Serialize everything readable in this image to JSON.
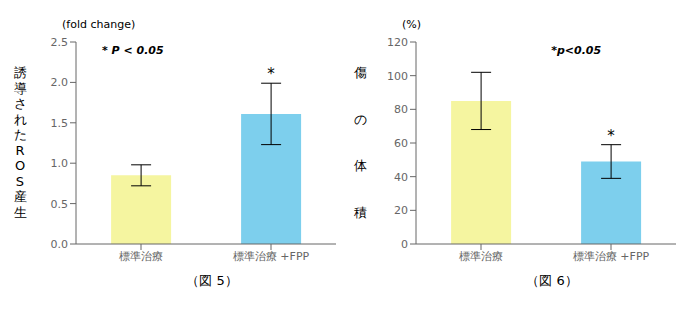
{
  "chart_data": [
    {
      "type": "bar",
      "caption": "（図 5）",
      "y_label": "誘導されたROS産生",
      "y_unit": "(fold change)",
      "annotation": "* P < 0.05",
      "bar_annotation": {
        "category": "標準治療 +FPP",
        "text": "*"
      },
      "categories": [
        "標準治療",
        "標準治療 +FPP"
      ],
      "values": [
        0.85,
        1.61
      ],
      "errors": [
        0.13,
        0.38
      ],
      "colors": [
        "#f5f5a0",
        "#7dcfed"
      ],
      "ylim": [
        0,
        2.5
      ],
      "yticks": [
        {
          "value": 0.0,
          "label": "0.0"
        },
        0.5,
        {
          "value": 1.0,
          "label": "1.0"
        },
        1.5,
        {
          "value": 2.0,
          "label": "2.0"
        },
        2.5
      ],
      "grid": false
    },
    {
      "type": "bar",
      "caption": "（図 6）",
      "y_label": "傷の体積",
      "y_unit": "(%)",
      "annotation": "*p<0.05",
      "bar_annotation": {
        "category": "標準治療 +FPP",
        "text": "*"
      },
      "categories": [
        "標準治療",
        "標準治療 +FPP"
      ],
      "values": [
        85,
        49
      ],
      "errors": [
        17,
        10
      ],
      "colors": [
        "#f5f5a0",
        "#7dcfed"
      ],
      "ylim": [
        0,
        120
      ],
      "yticks": [
        0,
        20,
        40,
        60,
        80,
        100,
        120
      ],
      "grid": false
    }
  ]
}
